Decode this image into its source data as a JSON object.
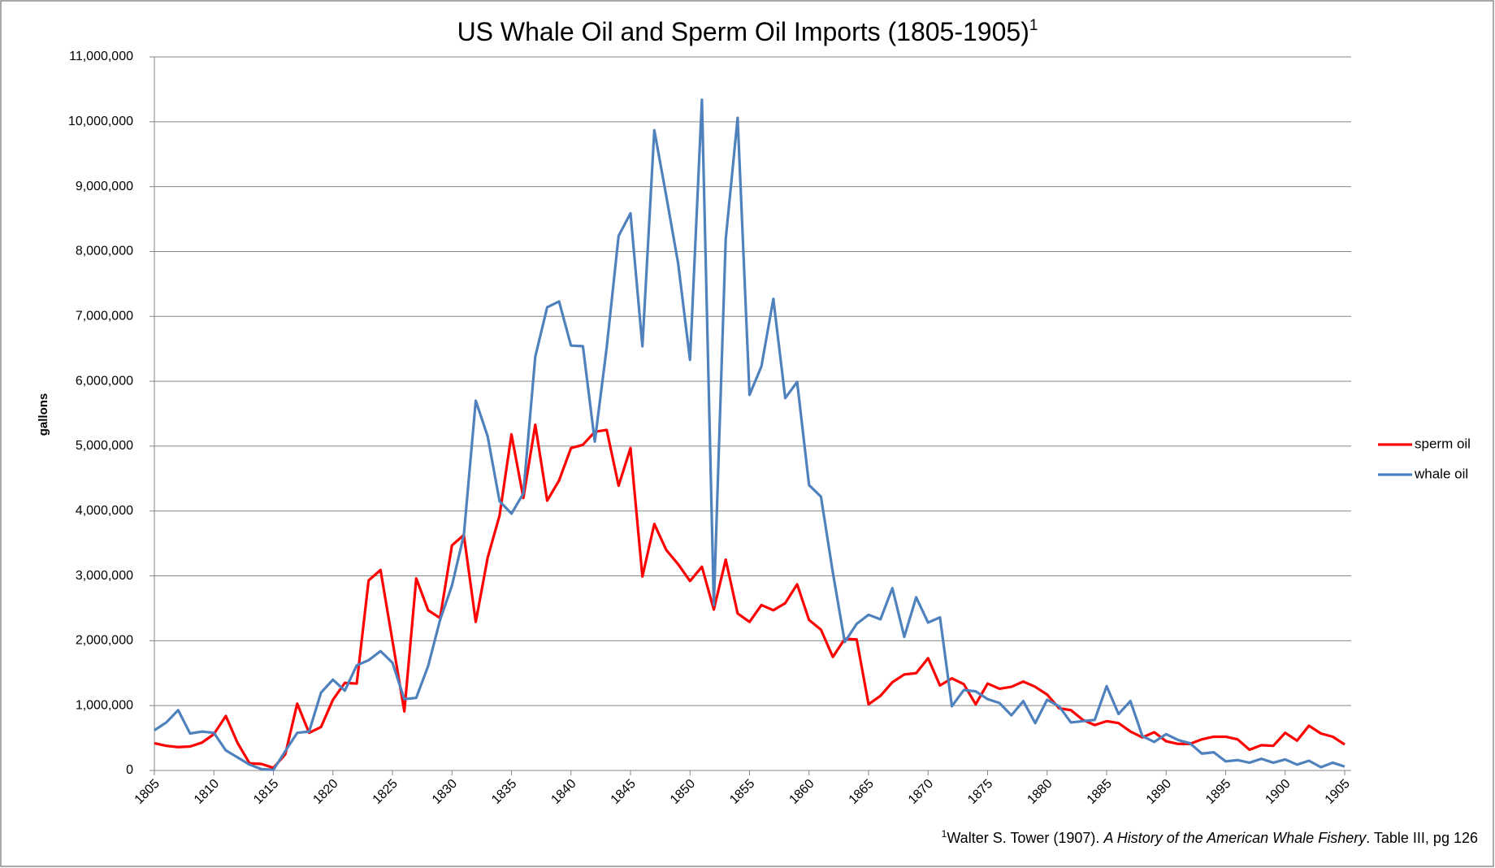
{
  "chart_data": {
    "type": "line",
    "title": "US Whale Oil and Sperm Oil Imports (1805-1905)",
    "title_superscript": "1",
    "ylabel": "gallons",
    "footnote": [
      "1",
      "Walter S. Tower (1907). ",
      "A History of the American Whale Fishery",
      ". Table III, pg 126"
    ],
    "x": [
      1805,
      1806,
      1807,
      1808,
      1809,
      1810,
      1811,
      1812,
      1813,
      1814,
      1815,
      1816,
      1817,
      1818,
      1819,
      1820,
      1821,
      1822,
      1823,
      1824,
      1825,
      1826,
      1827,
      1828,
      1829,
      1830,
      1831,
      1832,
      1833,
      1834,
      1835,
      1836,
      1837,
      1838,
      1839,
      1840,
      1841,
      1842,
      1843,
      1844,
      1845,
      1846,
      1847,
      1848,
      1849,
      1850,
      1851,
      1852,
      1853,
      1854,
      1855,
      1856,
      1857,
      1858,
      1859,
      1860,
      1861,
      1862,
      1863,
      1864,
      1865,
      1866,
      1867,
      1868,
      1869,
      1870,
      1871,
      1872,
      1873,
      1874,
      1875,
      1876,
      1877,
      1878,
      1879,
      1880,
      1881,
      1882,
      1883,
      1884,
      1885,
      1886,
      1887,
      1888,
      1889,
      1890,
      1891,
      1892,
      1893,
      1894,
      1895,
      1896,
      1897,
      1898,
      1899,
      1900,
      1901,
      1902,
      1903,
      1904,
      1905
    ],
    "series": [
      {
        "name": "sperm oil",
        "color": "#ff0000",
        "values": [
          420000,
          380000,
          360000,
          370000,
          430000,
          560000,
          840000,
          420000,
          110000,
          100000,
          40000,
          250000,
          1030000,
          580000,
          670000,
          1090000,
          1350000,
          1340000,
          2930000,
          3090000,
          2000000,
          910000,
          2960000,
          2470000,
          2350000,
          3470000,
          3630000,
          2290000,
          3280000,
          3930000,
          5180000,
          4200000,
          5330000,
          4160000,
          4470000,
          4970000,
          5020000,
          5220000,
          5250000,
          4390000,
          4970000,
          2990000,
          3800000,
          3400000,
          3180000,
          2920000,
          3140000,
          2480000,
          3250000,
          2420000,
          2290000,
          2550000,
          2470000,
          2580000,
          2870000,
          2320000,
          2170000,
          1750000,
          2030000,
          2020000,
          1020000,
          1150000,
          1360000,
          1480000,
          1500000,
          1730000,
          1310000,
          1420000,
          1330000,
          1020000,
          1340000,
          1260000,
          1290000,
          1370000,
          1290000,
          1170000,
          960000,
          930000,
          780000,
          700000,
          760000,
          730000,
          600000,
          510000,
          590000,
          450000,
          410000,
          410000,
          480000,
          520000,
          520000,
          480000,
          320000,
          390000,
          380000,
          580000,
          460000,
          690000,
          570000,
          520000,
          400000
        ]
      },
      {
        "name": "whale oil",
        "color": "#4f81bd",
        "values": [
          620000,
          740000,
          930000,
          570000,
          600000,
          580000,
          310000,
          200000,
          90000,
          20000,
          10000,
          300000,
          580000,
          600000,
          1200000,
          1400000,
          1230000,
          1620000,
          1700000,
          1840000,
          1660000,
          1100000,
          1120000,
          1610000,
          2320000,
          2850000,
          3630000,
          5700000,
          5150000,
          4150000,
          3960000,
          4270000,
          6380000,
          7140000,
          7230000,
          6550000,
          6540000,
          5070000,
          6520000,
          8240000,
          8590000,
          6540000,
          9870000,
          8860000,
          7820000,
          6330000,
          10340000,
          2550000,
          8190000,
          10060000,
          5790000,
          6230000,
          7270000,
          5740000,
          5990000,
          4400000,
          4220000,
          3050000,
          1980000,
          2260000,
          2400000,
          2330000,
          2810000,
          2060000,
          2670000,
          2280000,
          2360000,
          990000,
          1240000,
          1220000,
          1100000,
          1040000,
          850000,
          1070000,
          730000,
          1090000,
          990000,
          740000,
          760000,
          780000,
          1300000,
          870000,
          1070000,
          530000,
          440000,
          560000,
          470000,
          420000,
          260000,
          280000,
          140000,
          160000,
          120000,
          180000,
          120000,
          170000,
          90000,
          150000,
          50000,
          120000,
          60000
        ]
      }
    ],
    "xlim": [
      1805,
      1905
    ],
    "xticks": [
      1805,
      1810,
      1815,
      1820,
      1825,
      1830,
      1835,
      1840,
      1845,
      1850,
      1855,
      1860,
      1865,
      1870,
      1875,
      1880,
      1885,
      1890,
      1895,
      1900,
      1905
    ],
    "ylim": [
      0,
      11000000
    ],
    "yticks": [
      0,
      {
        "value": 1000000,
        "label": "1,000,000"
      },
      {
        "value": 2000000,
        "label": "2,000,000"
      },
      {
        "value": 3000000,
        "label": "3,000,000"
      },
      {
        "value": 4000000,
        "label": "4,000,000"
      },
      {
        "value": 5000000,
        "label": "5,000,000"
      },
      {
        "value": 6000000,
        "label": "6,000,000"
      },
      {
        "value": 7000000,
        "label": "7,000,000"
      },
      {
        "value": 8000000,
        "label": "8,000,000"
      },
      {
        "value": 9000000,
        "label": "9,000,000"
      },
      {
        "value": 10000000,
        "label": "10,000,000"
      },
      {
        "value": 11000000,
        "label": "11,000,000"
      }
    ],
    "grid": true,
    "legend": "right"
  }
}
